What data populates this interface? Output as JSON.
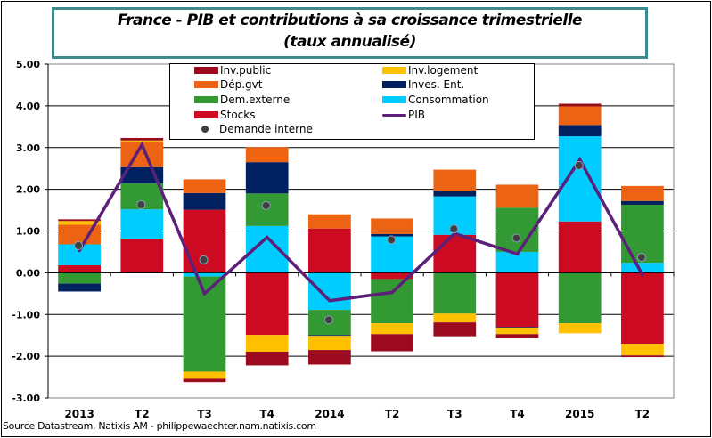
{
  "title": {
    "line1": "France - PIB et contributions à sa croissance trimestrielle",
    "line2": "(taux annualisé)"
  },
  "source": "Source Datastream, Natixis AM - philippewaechter.nam.natixis.com",
  "legend": {
    "items": [
      {
        "label": "Inv.public",
        "color": "#9b0a1e",
        "kind": "bar"
      },
      {
        "label": "Inv.logement",
        "color": "#ffc000",
        "kind": "bar"
      },
      {
        "label": "Dép.gvt",
        "color": "#ec6314",
        "kind": "bar"
      },
      {
        "label": "Inves. Ent.",
        "color": "#002060",
        "kind": "bar"
      },
      {
        "label": "Dem.externe",
        "color": "#339933",
        "kind": "bar"
      },
      {
        "label": "Consommation",
        "color": "#00ccff",
        "kind": "bar"
      },
      {
        "label": "Stocks",
        "color": "#cc0a22",
        "kind": "bar"
      },
      {
        "label": "PIB",
        "color": "#5c1f7a",
        "kind": "line"
      },
      {
        "label": "Demande interne",
        "color": "#404040",
        "kind": "dot"
      }
    ]
  },
  "chart_data": {
    "type": "bar",
    "stacked": true,
    "title": "France - PIB et contributions à sa croissance trimestrielle (taux annualisé)",
    "xlabel": "",
    "ylabel": "",
    "ylim": [
      -3,
      5
    ],
    "yticks": [
      5,
      4,
      3,
      2,
      1,
      0,
      -1,
      -2,
      -3
    ],
    "ytick_labels": [
      "5.00",
      "4.00",
      "3.00",
      "2.00",
      "1.00",
      "0.00",
      "-1.00",
      "-2.00",
      "-3.00"
    ],
    "grid": true,
    "legend_position": "top-center",
    "categories": [
      "2013",
      "T2",
      "T3",
      "T4",
      "2014",
      "T2",
      "T3",
      "T4",
      "2015",
      "T2"
    ],
    "series": [
      {
        "name": "Stocks",
        "color": "#cc0a22",
        "values": [
          0.18,
          0.82,
          1.51,
          -1.49,
          1.06,
          -0.15,
          0.91,
          -1.3,
          1.23,
          -1.7
        ]
      },
      {
        "name": "Consommation",
        "color": "#00ccff",
        "values": [
          0.5,
          0.7,
          -0.09,
          1.12,
          -0.89,
          0.87,
          0.92,
          0.5,
          2.04,
          0.24
        ]
      },
      {
        "name": "Dem.externe",
        "color": "#339933",
        "values": [
          -0.26,
          0.62,
          -2.28,
          0.78,
          -0.6,
          -1.06,
          -0.98,
          1.06,
          -1.21,
          1.39
        ]
      },
      {
        "name": "Inves. Ent.",
        "color": "#002060",
        "values": [
          -0.19,
          0.39,
          0.4,
          0.75,
          -0.02,
          0.06,
          0.14,
          -0.02,
          0.27,
          0.09
        ]
      },
      {
        "name": "Dép.gvt",
        "color": "#ec6314",
        "values": [
          0.47,
          0.61,
          0.33,
          0.36,
          0.34,
          0.37,
          0.5,
          0.55,
          0.45,
          0.36
        ]
      },
      {
        "name": "Inv.logement",
        "color": "#ffc000",
        "values": [
          0.09,
          0.03,
          -0.17,
          -0.4,
          -0.34,
          -0.26,
          -0.21,
          -0.15,
          -0.24,
          -0.28
        ]
      },
      {
        "name": "Inv.public",
        "color": "#9b0a1e",
        "values": [
          0.04,
          0.06,
          -0.08,
          -0.33,
          -0.35,
          -0.41,
          -0.33,
          -0.1,
          0.06,
          -0.04
        ]
      }
    ],
    "lines": [
      {
        "name": "PIB",
        "color": "#5c1f7a",
        "values": [
          0.53,
          3.07,
          -0.5,
          0.85,
          -0.67,
          -0.47,
          0.94,
          0.45,
          2.71,
          -0.05
        ]
      }
    ],
    "markers": [
      {
        "name": "Demande interne",
        "color": "#404040",
        "values": [
          0.65,
          1.63,
          0.31,
          1.61,
          -1.13,
          0.79,
          1.05,
          0.83,
          2.57,
          0.37
        ]
      }
    ]
  }
}
